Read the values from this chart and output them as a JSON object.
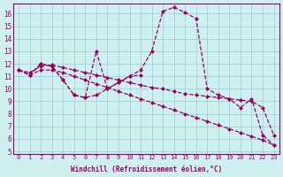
{
  "xlabel": "Windchill (Refroidissement éolien,°C)",
  "bg_color": "#cff0f0",
  "line_color": "#990066",
  "grid_color": "#99cccc",
  "xlim": [
    -0.5,
    23.5
  ],
  "ylim": [
    4.8,
    16.8
  ],
  "xticks": [
    0,
    1,
    2,
    3,
    4,
    5,
    6,
    7,
    8,
    9,
    10,
    11,
    12,
    13,
    14,
    15,
    16,
    17,
    18,
    19,
    20,
    21,
    22,
    23
  ],
  "yticks": [
    5,
    6,
    7,
    8,
    9,
    10,
    11,
    12,
    13,
    14,
    15,
    16
  ],
  "curve_big_x": [
    0,
    1,
    2,
    3,
    4,
    5,
    6,
    7,
    8,
    9,
    10,
    11,
    12,
    13,
    14,
    15,
    16,
    17,
    18,
    19,
    20,
    21,
    22,
    23
  ],
  "curve_big_y": [
    11.5,
    11.1,
    12.0,
    11.8,
    10.7,
    9.5,
    9.3,
    13.0,
    10.0,
    10.5,
    11.0,
    11.5,
    13.0,
    16.2,
    16.5,
    16.1,
    15.6,
    10.0,
    9.5,
    9.2,
    8.5,
    9.2,
    6.3,
    5.5
  ],
  "curve_wiggly_x": [
    0,
    1,
    2,
    3,
    4,
    5,
    6,
    7,
    8,
    9,
    10,
    11
  ],
  "curve_wiggly_y": [
    11.5,
    11.1,
    12.0,
    11.8,
    10.7,
    9.5,
    9.3,
    9.5,
    10.0,
    10.5,
    11.0,
    11.1
  ],
  "curve_flat_x": [
    0,
    1,
    2,
    3,
    4,
    5,
    6,
    7,
    8,
    9,
    10,
    11,
    12,
    13,
    14,
    15,
    16,
    17,
    18,
    19,
    20,
    21,
    22,
    23
  ],
  "curve_flat_y": [
    11.5,
    11.3,
    11.8,
    11.9,
    11.7,
    11.5,
    11.3,
    11.1,
    10.9,
    10.7,
    10.5,
    10.3,
    10.1,
    10.0,
    9.8,
    9.6,
    9.5,
    9.4,
    9.3,
    9.2,
    9.1,
    9.0,
    8.5,
    6.3
  ],
  "curve_steep_x": [
    0,
    1,
    2,
    3,
    4,
    5,
    6,
    7,
    8,
    9,
    10,
    11,
    12,
    13,
    14,
    15,
    16,
    17,
    18,
    19,
    20,
    21,
    22,
    23
  ],
  "curve_steep_y": [
    11.5,
    11.1,
    11.5,
    11.5,
    11.3,
    11.0,
    10.7,
    10.4,
    10.1,
    9.8,
    9.5,
    9.2,
    8.9,
    8.6,
    8.3,
    8.0,
    7.7,
    7.4,
    7.1,
    6.8,
    6.5,
    6.2,
    5.9,
    5.5
  ]
}
